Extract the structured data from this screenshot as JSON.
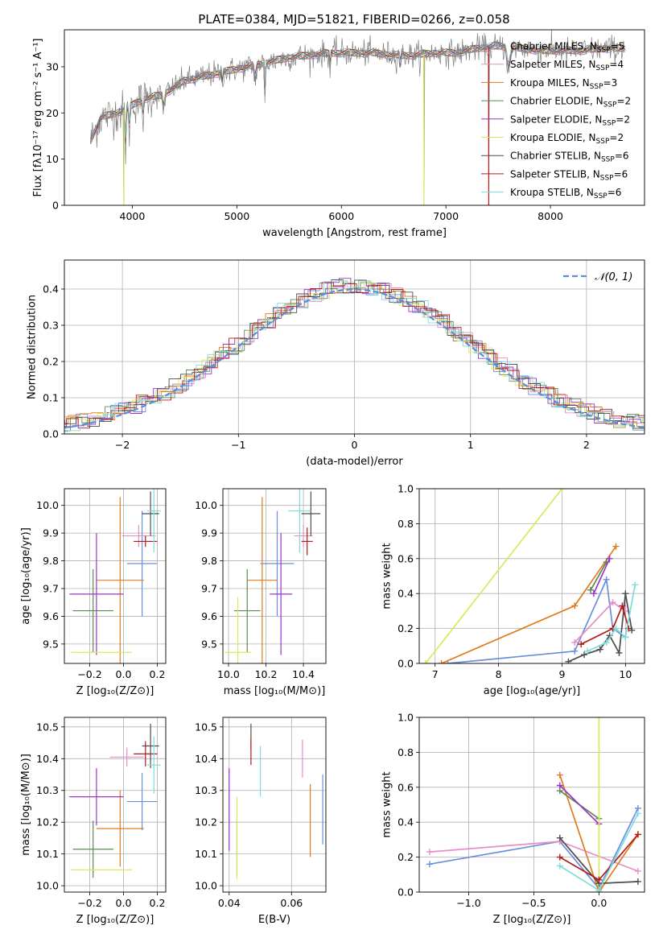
{
  "title": "PLATE=0384, MJD=51821, FIBERID=0266, z=0.058",
  "colors": {
    "cm": "#6a8fdc",
    "sm": "#e88ec7",
    "km": "#e07b1d",
    "ce": "#5c8a55",
    "se": "#9b34c8",
    "ke": "#dce85a",
    "cs": "#4d4d4d",
    "ss": "#b31a1a",
    "ks": "#7fdcdc",
    "norm": "#5b8cd6",
    "data": "#808080"
  },
  "chart_data": [
    {
      "id": "spectrum",
      "type": "line",
      "xlabel": "wavelength [Angstrom, rest frame]",
      "ylabel": "Flux [fλ10⁻¹⁷ erg cm⁻² s⁻¹ A⁻¹]",
      "xlim": [
        3350,
        8900
      ],
      "ylim": [
        0,
        38
      ],
      "xticks": [
        4000,
        5000,
        6000,
        7000,
        8000
      ],
      "yticks": [
        0,
        10,
        20,
        30
      ],
      "legend_position": "right",
      "series": [
        {
          "key": "cm",
          "name": "Chabrier MILES, N_SSP=5",
          "label": "Chabrier MILES, N",
          "sub": "SSP",
          "suffix": "=5"
        },
        {
          "key": "sm",
          "name": "Salpeter MILES, N_SSP=4",
          "label": "Salpeter MILES, N",
          "sub": "SSP",
          "suffix": "=4"
        },
        {
          "key": "km",
          "name": "Kroupa MILES, N_SSP=3",
          "label": "Kroupa MILES, N",
          "sub": "SSP",
          "suffix": "=3"
        },
        {
          "key": "ce",
          "name": "Chabrier ELODIE, N_SSP=2",
          "label": "Chabrier ELODIE, N",
          "sub": "SSP",
          "suffix": "=2"
        },
        {
          "key": "se",
          "name": "Salpeter ELODIE, N_SSP=2",
          "label": "Salpeter ELODIE, N",
          "sub": "SSP",
          "suffix": "=2"
        },
        {
          "key": "ke",
          "name": "Kroupa ELODIE, N_SSP=2",
          "label": "Kroupa ELODIE, N",
          "sub": "SSP",
          "suffix": "=2"
        },
        {
          "key": "cs",
          "name": "Chabrier STELIB, N_SSP=6",
          "label": "Chabrier STELIB, N",
          "sub": "SSP",
          "suffix": "=6"
        },
        {
          "key": "ss",
          "name": "Salpeter STELIB, N_SSP=6",
          "label": "Salpeter STELIB, N",
          "sub": "SSP",
          "suffix": "=6"
        },
        {
          "key": "ks",
          "name": "Kroupa STELIB, N_SSP=6",
          "label": "Kroupa STELIB, N",
          "sub": "SSP",
          "suffix": "=6"
        }
      ],
      "continuum": {
        "x": [
          3600,
          3700,
          3850,
          3950,
          4100,
          4300,
          4500,
          4700,
          4900,
          5100,
          5300,
          5500,
          5700,
          5900,
          6100,
          6300,
          6500,
          6700,
          6900,
          7100,
          7300,
          7500,
          7700,
          7900,
          8100,
          8300,
          8500,
          8700
        ],
        "y": [
          14,
          19,
          20,
          21,
          23,
          24,
          27,
          28,
          29,
          30,
          31,
          32,
          32.5,
          33,
          33,
          33,
          32.5,
          32.5,
          33,
          33,
          34,
          34.5,
          34,
          33.5,
          33.5,
          33.5,
          34,
          34
        ]
      },
      "spikes_down": [
        {
          "x": 3920,
          "y": 0
        },
        {
          "x": 6790,
          "y": 0
        },
        {
          "x": 7410,
          "y": 0
        }
      ]
    },
    {
      "id": "residuals",
      "type": "histogram",
      "xlabel": "(data-model)/error",
      "ylabel": "Normed distribution",
      "xlim": [
        -2.5,
        2.5
      ],
      "ylim": [
        0,
        0.48
      ],
      "xticks": [
        -2,
        -1,
        0,
        1,
        2
      ],
      "yticks": [
        0.0,
        0.1,
        0.2,
        0.3,
        0.4
      ],
      "legend": "𝒩(0, 1)",
      "legend_position": "top-right",
      "bin_width": 0.1
    },
    {
      "id": "age-vs-z",
      "type": "errorbar",
      "xlabel": "Z [log₁₀(Z/Z⊙)]",
      "ylabel": "age  [log₁₀(age/yr)]",
      "xlim": [
        -0.35,
        0.25
      ],
      "ylim": [
        9.43,
        10.06
      ],
      "xticks": [
        -0.2,
        0.0,
        0.2
      ],
      "yticks": [
        9.5,
        9.6,
        9.7,
        9.8,
        9.9,
        10.0
      ],
      "points": [
        {
          "key": "cm",
          "x": 0.11,
          "y": 9.79,
          "dx": 0.09,
          "dy": 0.19
        },
        {
          "key": "sm",
          "x": 0.09,
          "y": 9.89,
          "dx": 0.1,
          "dy": 0.04
        },
        {
          "key": "km",
          "x": -0.02,
          "y": 9.73,
          "dx": 0.14,
          "dy": 0.3
        },
        {
          "key": "ce",
          "x": -0.18,
          "y": 9.62,
          "dx": 0.12,
          "dy": 0.15
        },
        {
          "key": "se",
          "x": -0.16,
          "y": 9.68,
          "dx": 0.16,
          "dy": 0.22
        },
        {
          "key": "ke",
          "x": -0.13,
          "y": 9.47,
          "dx": 0.18,
          "dy": 0.0
        },
        {
          "key": "cs",
          "x": 0.16,
          "y": 9.97,
          "dx": 0.05,
          "dy": 0.08
        },
        {
          "key": "ss",
          "x": 0.13,
          "y": 9.87,
          "dx": 0.07,
          "dy": 0.02
        },
        {
          "key": "ks",
          "x": 0.18,
          "y": 9.98,
          "dx": 0.04,
          "dy": 0.15
        }
      ]
    },
    {
      "id": "age-vs-mass",
      "type": "errorbar",
      "xlabel": "mass [log₁₀(M/M⊙)]",
      "ylabel": "",
      "xlim": [
        9.97,
        10.52
      ],
      "ylim": [
        9.43,
        10.06
      ],
      "xticks": [
        10.0,
        10.2,
        10.4
      ],
      "yticks": [
        9.5,
        9.6,
        9.7,
        9.8,
        9.9,
        10.0
      ],
      "points": [
        {
          "key": "cm",
          "x": 10.26,
          "y": 9.79,
          "dx": 0.09,
          "dy": 0.19
        },
        {
          "key": "sm",
          "x": 10.4,
          "y": 9.89,
          "dx": 0.05,
          "dy": 0.04
        },
        {
          "key": "km",
          "x": 10.18,
          "y": 9.73,
          "dx": 0.08,
          "dy": 0.3
        },
        {
          "key": "ce",
          "x": 10.1,
          "y": 9.62,
          "dx": 0.07,
          "dy": 0.15
        },
        {
          "key": "se",
          "x": 10.28,
          "y": 9.68,
          "dx": 0.06,
          "dy": 0.22
        },
        {
          "key": "ke",
          "x": 10.05,
          "y": 9.47,
          "dx": 0.07,
          "dy": 0.2
        },
        {
          "key": "cs",
          "x": 10.44,
          "y": 9.97,
          "dx": 0.05,
          "dy": 0.08
        },
        {
          "key": "ss",
          "x": 10.42,
          "y": 9.87,
          "dx": 0.03,
          "dy": 0.05
        },
        {
          "key": "ks",
          "x": 10.38,
          "y": 9.98,
          "dx": 0.06,
          "dy": 0.15
        }
      ]
    },
    {
      "id": "weight-vs-age",
      "type": "line",
      "xlabel": "age  [log₁₀(age/yr)]",
      "ylabel": "mass weight",
      "xlim": [
        6.75,
        10.3
      ],
      "ylim": [
        0,
        1
      ],
      "xticks": [
        7,
        8,
        9,
        10
      ],
      "yticks": [
        0.0,
        0.2,
        0.4,
        0.6,
        0.8,
        1.0
      ],
      "series": [
        {
          "key": "cm",
          "x": [
            7.2,
            9.2,
            9.7,
            9.8,
            10.0
          ],
          "y": [
            0.0,
            0.07,
            0.48,
            0.2,
            0.15
          ]
        },
        {
          "key": "sm",
          "x": [
            9.2,
            9.8,
            10.0
          ],
          "y": [
            0.12,
            0.35,
            0.3
          ]
        },
        {
          "key": "km",
          "x": [
            7.1,
            9.2,
            9.85
          ],
          "y": [
            0.0,
            0.33,
            0.67
          ]
        },
        {
          "key": "ce",
          "x": [
            9.45,
            9.7
          ],
          "y": [
            0.42,
            0.58
          ]
        },
        {
          "key": "se",
          "x": [
            9.5,
            9.75
          ],
          "y": [
            0.4,
            0.6
          ]
        },
        {
          "key": "ke",
          "x": [
            6.85,
            9.0
          ],
          "y": [
            0.0,
            1.0
          ]
        },
        {
          "key": "cs",
          "x": [
            9.1,
            9.35,
            9.6,
            9.75,
            9.9,
            10.0,
            10.1
          ],
          "y": [
            0.01,
            0.05,
            0.08,
            0.16,
            0.06,
            0.4,
            0.19
          ]
        },
        {
          "key": "ss",
          "x": [
            9.3,
            9.8,
            9.95,
            10.05
          ],
          "y": [
            0.11,
            0.2,
            0.33,
            0.2
          ]
        },
        {
          "key": "ks",
          "x": [
            9.4,
            9.7,
            9.85,
            10.0,
            10.15
          ],
          "y": [
            0.07,
            0.12,
            0.2,
            0.15,
            0.45
          ]
        }
      ]
    },
    {
      "id": "mass-vs-z",
      "type": "errorbar",
      "xlabel": "Z [log₁₀(Z/Z⊙)]",
      "ylabel": "mass [log₁₀(M/M⊙)]",
      "xlim": [
        -0.35,
        0.25
      ],
      "ylim": [
        9.98,
        10.53
      ],
      "xticks": [
        -0.2,
        0.0,
        0.2
      ],
      "yticks": [
        10.0,
        10.1,
        10.2,
        10.3,
        10.4,
        10.5
      ],
      "points": [
        {
          "key": "cm",
          "x": 0.11,
          "y": 10.265,
          "dx": 0.09,
          "dy": 0.09
        },
        {
          "key": "sm",
          "x": 0.02,
          "y": 10.405,
          "dx": 0.1,
          "dy": 0.03
        },
        {
          "key": "km",
          "x": -0.02,
          "y": 10.18,
          "dx": 0.14,
          "dy": 0.12
        },
        {
          "key": "ce",
          "x": -0.18,
          "y": 10.115,
          "dx": 0.12,
          "dy": 0.09
        },
        {
          "key": "se",
          "x": -0.16,
          "y": 10.28,
          "dx": 0.16,
          "dy": 0.09
        },
        {
          "key": "ke",
          "x": -0.13,
          "y": 10.05,
          "dx": 0.18,
          "dy": 0.0
        },
        {
          "key": "cs",
          "x": 0.16,
          "y": 10.44,
          "dx": 0.05,
          "dy": 0.07
        },
        {
          "key": "ss",
          "x": 0.13,
          "y": 10.415,
          "dx": 0.07,
          "dy": 0.04
        },
        {
          "key": "ks",
          "x": 0.18,
          "y": 10.38,
          "dx": 0.04,
          "dy": 0.09
        }
      ]
    },
    {
      "id": "mass-vs-ebv",
      "type": "errorbar",
      "xlabel": "E(B-V)",
      "ylabel": "",
      "xlim": [
        0.038,
        0.071
      ],
      "ylim": [
        9.98,
        10.53
      ],
      "xticks": [
        0.04,
        0.06
      ],
      "yticks": [
        10.0,
        10.1,
        10.2,
        10.3,
        10.4,
        10.5
      ],
      "points": [
        {
          "key": "cm",
          "x": 0.07,
          "y": 10.24,
          "dx": 0,
          "dy": 0.11
        },
        {
          "key": "sm",
          "x": 0.0635,
          "y": 10.4,
          "dx": 0,
          "dy": 0.06
        },
        {
          "key": "km",
          "x": 0.066,
          "y": 10.205,
          "dx": 0,
          "dy": 0.115
        },
        {
          "key": "ce",
          "x": 0.0425,
          "y": 10.12,
          "dx": 0,
          "dy": 0.09
        },
        {
          "key": "se",
          "x": 0.04,
          "y": 10.24,
          "dx": 0,
          "dy": 0.13
        },
        {
          "key": "ke",
          "x": 0.0425,
          "y": 10.15,
          "dx": 0,
          "dy": 0.13
        },
        {
          "key": "cs",
          "x": 0.047,
          "y": 10.47,
          "dx": 0,
          "dy": 0.04
        },
        {
          "key": "ss",
          "x": 0.047,
          "y": 10.42,
          "dx": 0,
          "dy": 0.04
        },
        {
          "key": "ks",
          "x": 0.05,
          "y": 10.36,
          "dx": 0,
          "dy": 0.08
        }
      ]
    },
    {
      "id": "weight-vs-z",
      "type": "line",
      "xlabel": "Z [log₁₀(Z/Z⊙)]",
      "ylabel": "mass weight",
      "xlim": [
        -1.38,
        0.35
      ],
      "ylim": [
        0,
        1
      ],
      "xticks": [
        -1.0,
        -0.5,
        0.0
      ],
      "yticks": [
        0.0,
        0.2,
        0.4,
        0.6,
        0.8,
        1.0
      ],
      "series": [
        {
          "key": "cm",
          "x": [
            -1.3,
            -0.3,
            0.0,
            0.3
          ],
          "y": [
            0.16,
            0.29,
            0.02,
            0.48
          ]
        },
        {
          "key": "sm",
          "x": [
            -1.3,
            -0.3,
            0.3
          ],
          "y": [
            0.23,
            0.29,
            0.12
          ]
        },
        {
          "key": "km",
          "x": [
            -0.3,
            0.0,
            0.3
          ],
          "y": [
            0.67,
            0.0,
            0.33
          ]
        },
        {
          "key": "ce",
          "x": [
            -0.3,
            0.0
          ],
          "y": [
            0.58,
            0.42
          ]
        },
        {
          "key": "se",
          "x": [
            -0.3,
            0.0
          ],
          "y": [
            0.61,
            0.39
          ]
        },
        {
          "key": "ke",
          "x": [
            0.0,
            0.0
          ],
          "y": [
            0.0,
            1.0
          ]
        },
        {
          "key": "cs",
          "x": [
            -0.3,
            0.0,
            0.3
          ],
          "y": [
            0.31,
            0.05,
            0.06
          ]
        },
        {
          "key": "ss",
          "x": [
            -0.3,
            0.0,
            0.3
          ],
          "y": [
            0.2,
            0.07,
            0.33
          ]
        },
        {
          "key": "ks",
          "x": [
            -0.3,
            0.0,
            0.3
          ],
          "y": [
            0.15,
            0.01,
            0.45
          ]
        }
      ]
    }
  ]
}
